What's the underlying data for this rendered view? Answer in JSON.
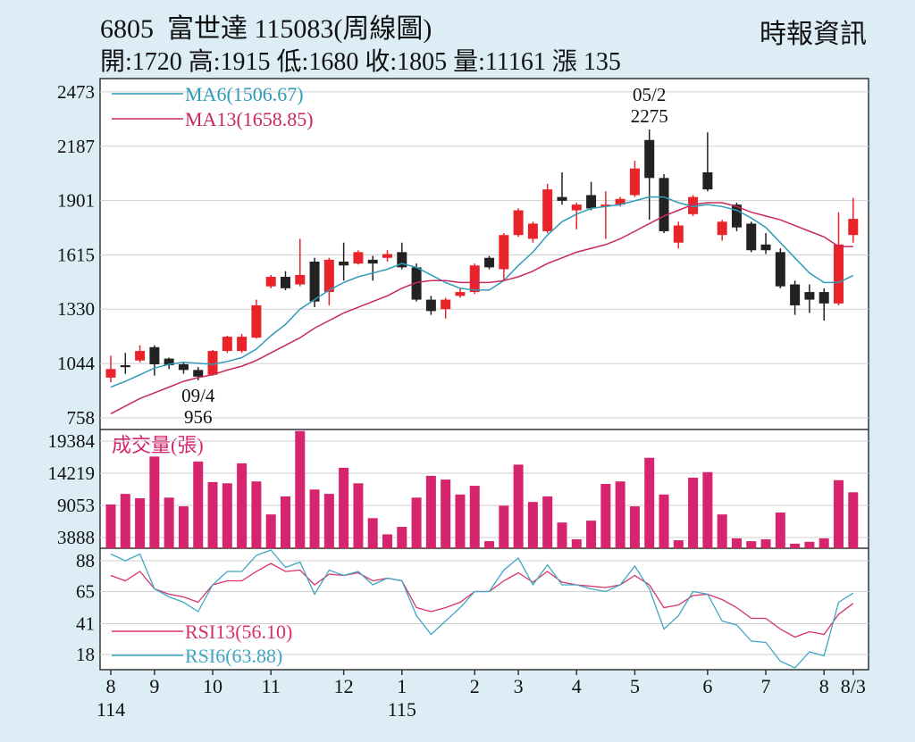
{
  "chart_data": [
    {
      "type": "candlestick",
      "title": "6805  富世達 115083(周線圖)",
      "subtitle": "開:1720 高:1915 低:1680 收:1805 量:11161 漲 135",
      "source": "時報資訊",
      "open": [
        970,
        1035,
        1060,
        1130,
        1070,
        1040,
        1010,
        985,
        1110,
        1110,
        1180,
        1450,
        1500,
        1460,
        1580,
        1420,
        1580,
        1570,
        1590,
        1600,
        1630,
        1550,
        1380,
        1330,
        1400,
        1420,
        1600,
        1540,
        1720,
        1700,
        1740,
        1920,
        1850,
        1930,
        1870,
        1880,
        1930,
        2220,
        2020,
        1680,
        1830,
        2050,
        1720,
        1880,
        1780,
        1670,
        1630,
        1460,
        1420,
        1420,
        1360,
        1720
      ],
      "high": [
        1085,
        1100,
        1140,
        1140,
        1075,
        1050,
        1025,
        1115,
        1190,
        1200,
        1380,
        1510,
        1530,
        1700,
        1600,
        1600,
        1680,
        1640,
        1610,
        1640,
        1680,
        1570,
        1400,
        1390,
        1440,
        1570,
        1610,
        1730,
        1860,
        1790,
        1990,
        2050,
        1890,
        2000,
        1950,
        1920,
        2110,
        2275,
        2040,
        1790,
        1930,
        2260,
        1800,
        1890,
        1790,
        1730,
        1650,
        1480,
        1460,
        1440,
        1840,
        1915
      ],
      "low": [
        945,
        990,
        1050,
        980,
        1015,
        990,
        956,
        980,
        1100,
        1100,
        1175,
        1440,
        1430,
        1450,
        1340,
        1350,
        1480,
        1565,
        1480,
        1580,
        1540,
        1370,
        1300,
        1280,
        1390,
        1410,
        1540,
        1480,
        1710,
        1680,
        1730,
        1880,
        1750,
        1850,
        1700,
        1870,
        1920,
        1800,
        1730,
        1650,
        1820,
        1950,
        1690,
        1740,
        1630,
        1620,
        1440,
        1300,
        1310,
        1270,
        1350,
        1680
      ],
      "close": [
        1015,
        1025,
        1110,
        1040,
        1035,
        1010,
        975,
        1110,
        1185,
        1185,
        1350,
        1500,
        1440,
        1510,
        1370,
        1590,
        1560,
        1630,
        1570,
        1620,
        1550,
        1380,
        1320,
        1380,
        1420,
        1560,
        1550,
        1720,
        1850,
        1780,
        1960,
        1900,
        1880,
        1860,
        1880,
        1910,
        2070,
        2020,
        1740,
        1770,
        1920,
        1960,
        1790,
        1760,
        1640,
        1640,
        1450,
        1350,
        1380,
        1360,
        1670,
        1805
      ],
      "up_color": "#e8232a",
      "down_color": "#222222",
      "series": [
        {
          "name": "MA6(1506.67)",
          "color": "#2e9cb8",
          "values": [
            920,
            950,
            985,
            1020,
            1040,
            1050,
            1045,
            1040,
            1055,
            1075,
            1120,
            1190,
            1250,
            1330,
            1380,
            1430,
            1470,
            1500,
            1520,
            1540,
            1570,
            1550,
            1510,
            1470,
            1440,
            1430,
            1430,
            1480,
            1560,
            1630,
            1720,
            1790,
            1830,
            1860,
            1870,
            1880,
            1900,
            1920,
            1920,
            1890,
            1870,
            1880,
            1870,
            1850,
            1810,
            1760,
            1680,
            1600,
            1520,
            1470,
            1470,
            1507
          ]
        },
        {
          "name": "MA13(1658.85)",
          "color": "#c8285a",
          "values": [
            780,
            820,
            860,
            890,
            920,
            950,
            970,
            985,
            1010,
            1030,
            1060,
            1100,
            1140,
            1180,
            1230,
            1270,
            1310,
            1340,
            1370,
            1400,
            1440,
            1470,
            1480,
            1480,
            1470,
            1470,
            1470,
            1480,
            1500,
            1530,
            1570,
            1600,
            1630,
            1650,
            1670,
            1700,
            1740,
            1780,
            1820,
            1850,
            1880,
            1890,
            1890,
            1870,
            1840,
            1820,
            1800,
            1770,
            1740,
            1710,
            1660,
            1659
          ]
        }
      ],
      "annotations": [
        {
          "date": "05/2",
          "value": 2275,
          "at": "high"
        },
        {
          "date": "09/4",
          "value": 956,
          "at": "low"
        }
      ],
      "ylim": [
        697,
        2543
      ],
      "yticks": [
        758,
        1044,
        1330,
        1615,
        1901,
        2187,
        2473
      ],
      "grid": true
    },
    {
      "type": "bar",
      "title": "成交量(張)",
      "color": "#d6246e",
      "values": [
        9200,
        10900,
        10200,
        16900,
        10300,
        8900,
        16100,
        12800,
        12600,
        15800,
        12900,
        7600,
        10500,
        21000,
        11600,
        10900,
        15100,
        12600,
        7000,
        4400,
        5600,
        10300,
        13800,
        13200,
        10800,
        12200,
        3300,
        9000,
        15600,
        9600,
        10500,
        6300,
        3600,
        6600,
        12500,
        12900,
        8900,
        16700,
        10800,
        3450,
        13500,
        14400,
        7600,
        3750,
        3300,
        3600,
        7900,
        2900,
        3200,
        3750,
        13100,
        11161
      ],
      "ylim": [
        2166,
        21249
      ],
      "yticks": [
        3888,
        9053,
        14219,
        19384
      ],
      "grid": true
    },
    {
      "type": "line",
      "categories": [
        "8",
        null,
        null,
        "9",
        null,
        null,
        null,
        "10",
        null,
        null,
        null,
        "11",
        null,
        null,
        null,
        null,
        "12",
        null,
        null,
        null,
        "1",
        null,
        null,
        null,
        null,
        "2",
        null,
        null,
        "3",
        null,
        null,
        null,
        "4",
        null,
        null,
        null,
        "5",
        null,
        null,
        null,
        null,
        "6",
        null,
        null,
        null,
        "7",
        null,
        null,
        null,
        "8",
        null,
        "8/3"
      ],
      "years": [
        "114",
        null,
        null,
        null,
        null,
        null,
        null,
        null,
        null,
        null,
        null,
        null,
        null,
        null,
        null,
        null,
        null,
        null,
        null,
        null,
        "115",
        null,
        null,
        null,
        null,
        null,
        null,
        null,
        null,
        null,
        null,
        null,
        null,
        null,
        null,
        null,
        null,
        null,
        null,
        null,
        null,
        null,
        null,
        null,
        null,
        null,
        null,
        null,
        null,
        null,
        null,
        null
      ],
      "series": [
        {
          "name": "RSI13(56.10)",
          "color": "#d8306a",
          "values": [
            77,
            73,
            80,
            67,
            63,
            61,
            57,
            70,
            73,
            73,
            80,
            86,
            80,
            81,
            70,
            78,
            77,
            79,
            73,
            75,
            73,
            53,
            50,
            53,
            57,
            65,
            65,
            73,
            79,
            72,
            80,
            72,
            70,
            69,
            68,
            70,
            77,
            70,
            53,
            55,
            62,
            63,
            59,
            53,
            45,
            45,
            37,
            31,
            35,
            33,
            48,
            56.1
          ]
        },
        {
          "name": "RSI6(63.88)",
          "color": "#3fa6c4",
          "values": [
            93,
            88,
            93,
            67,
            61,
            57,
            50,
            70,
            80,
            80,
            92,
            96,
            83,
            87,
            63,
            81,
            77,
            80,
            70,
            75,
            73,
            47,
            33,
            43,
            53,
            65,
            65,
            81,
            90,
            70,
            85,
            70,
            70,
            67,
            65,
            70,
            84,
            67,
            37,
            47,
            65,
            63,
            43,
            40,
            28,
            27,
            13,
            8,
            20,
            17,
            57,
            63.88
          ]
        }
      ],
      "ylim": [
        6.7,
        97.3
      ],
      "yticks": [
        18,
        41,
        65,
        88
      ],
      "grid": true
    }
  ]
}
